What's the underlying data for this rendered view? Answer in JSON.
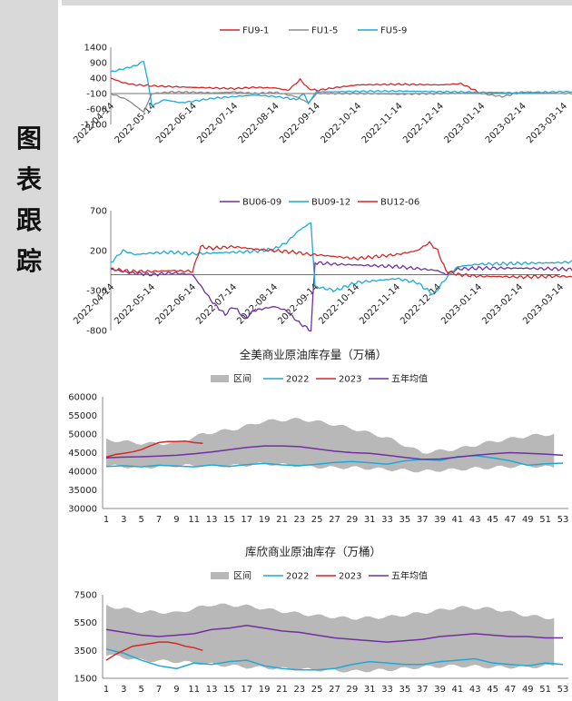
{
  "sidebar": {
    "title_chars": [
      "图",
      "表",
      "跟",
      "踪"
    ]
  },
  "chart_data": [
    {
      "type": "line",
      "title": "",
      "legend": [
        "FU9-1",
        "FU1-5",
        "FU5-9"
      ],
      "legend_position": "top",
      "colors": [
        "#d62728",
        "#8c8c8c",
        "#1fa9d6"
      ],
      "yticks": [
        "1400",
        "900",
        "400",
        "-100",
        "-600",
        "-1100"
      ],
      "ylim": [
        -1100,
        1400
      ],
      "xticks": [
        "2022-04-14",
        "2022-05-14",
        "2022-06-14",
        "2022-07-14",
        "2022-08-14",
        "2022-09-14",
        "2022-10-14",
        "2022-11-14",
        "2022-12-14",
        "2023-01-14",
        "2023-02-14",
        "2023-03-14"
      ],
      "series": [
        {
          "name": "FU9-1",
          "x": [
            0,
            0.3,
            0.6,
            1.0,
            1.5,
            2.0,
            2.5,
            3.0,
            3.5,
            4.0,
            4.3,
            4.6,
            4.8,
            5.0,
            5.5,
            6.0,
            7.0,
            8.0,
            8.5,
            8.7,
            9.0
          ],
          "values": [
            400,
            250,
            180,
            150,
            120,
            100,
            80,
            60,
            100,
            80,
            0,
            350,
            60,
            0,
            100,
            180,
            200,
            180,
            220,
            100,
            -100
          ]
        },
        {
          "name": "FU1-5",
          "x": [
            0,
            0.4,
            0.8,
            1.0,
            1.5,
            2.0,
            2.5,
            3.0,
            3.5,
            4.0,
            4.5,
            4.8,
            5.0,
            6.0,
            7.0,
            8.0,
            8.9,
            9.0,
            9.5,
            10.0,
            10.5,
            11.0,
            11.5,
            12.0,
            12.2
          ],
          "values": [
            -100,
            -300,
            -700,
            -100,
            -50,
            -60,
            -80,
            -50,
            -100,
            -60,
            -200,
            -400,
            -100,
            -100,
            -120,
            -100,
            -80,
            -100,
            -200,
            -50,
            -80,
            -100,
            -100,
            -150,
            -400
          ]
        },
        {
          "name": "FU5-9",
          "x": [
            0,
            0.3,
            0.6,
            0.8,
            0.9,
            1.0,
            1.3,
            1.7,
            2.0,
            2.5,
            3.0,
            3.5,
            4.0,
            4.3,
            4.5,
            4.7,
            4.8,
            4.9,
            5.0,
            6.0,
            7.0,
            8.0,
            9.0,
            10.0,
            11.0,
            11.5,
            12.0,
            12.2
          ],
          "values": [
            600,
            700,
            800,
            950,
            300,
            -500,
            -300,
            -400,
            -350,
            -250,
            -200,
            -150,
            -200,
            -250,
            -300,
            -100,
            -450,
            -200,
            -50,
            -30,
            -20,
            -40,
            -60,
            -80,
            -40,
            -60,
            30,
            120
          ]
        }
      ]
    },
    {
      "type": "line",
      "title": "",
      "legend": [
        "BU06-09",
        "BU09-12",
        "BU12-06"
      ],
      "legend_position": "top",
      "colors": [
        "#7030a0",
        "#1fa9d6",
        "#d62728"
      ],
      "yticks": [
        "700",
        "200",
        "-300",
        "-800"
      ],
      "ylim": [
        -800,
        700
      ],
      "xticks": [
        "2022-04-14",
        "2022-05-14",
        "2022-06-14",
        "2022-07-14",
        "2022-08-14",
        "2022-09-14",
        "2022-10-14",
        "2022-11-14",
        "2022-12-14",
        "2023-01-14",
        "2023-02-14",
        "2023-03-14"
      ],
      "series": [
        {
          "name": "BU06-09",
          "x": [
            0,
            0.5,
            1.0,
            1.5,
            2.0,
            2.5,
            2.8,
            3.0,
            3.3,
            3.5,
            4.0,
            4.3,
            4.6,
            4.9,
            5.0,
            5.5,
            6.0,
            7.0,
            8.0,
            8.2,
            8.5,
            9.0,
            10.0,
            11.0,
            12.0,
            12.2
          ],
          "values": [
            -30,
            -80,
            -100,
            -80,
            -100,
            -450,
            -600,
            -500,
            -650,
            -550,
            -500,
            -550,
            -700,
            -800,
            50,
            30,
            20,
            0,
            -50,
            -100,
            -30,
            -20,
            -20,
            -30,
            -50,
            -40
          ]
        },
        {
          "name": "BU09-12",
          "x": [
            0,
            0.3,
            0.6,
            1.0,
            1.5,
            2.0,
            2.5,
            3.0,
            3.5,
            4.0,
            4.3,
            4.6,
            4.9,
            5.0,
            5.5,
            6.0,
            7.0,
            7.5,
            7.9,
            8.2,
            8.5,
            9.0,
            10.0,
            11.0,
            12.0,
            12.2
          ],
          "values": [
            50,
            200,
            150,
            170,
            180,
            160,
            170,
            180,
            190,
            220,
            300,
            450,
            550,
            -250,
            -300,
            -200,
            -150,
            -200,
            -350,
            -150,
            0,
            30,
            40,
            50,
            90,
            100
          ]
        },
        {
          "name": "BU12-06",
          "x": [
            0,
            0.5,
            1.0,
            1.5,
            2.0,
            2.2,
            2.5,
            3.0,
            3.5,
            4.0,
            4.5,
            4.9,
            5.0,
            6.0,
            7.0,
            7.5,
            7.8,
            8.0,
            8.2,
            8.5,
            9.0,
            10.0,
            11.0,
            12.0,
            12.2
          ],
          "values": [
            -30,
            -60,
            -60,
            -50,
            -60,
            250,
            230,
            250,
            220,
            200,
            180,
            150,
            150,
            100,
            150,
            200,
            300,
            200,
            -50,
            -100,
            -120,
            -130,
            -120,
            -150,
            -140
          ]
        }
      ]
    },
    {
      "type": "area",
      "title": "全美商业原油库存量（万桶）",
      "legend": [
        "区间",
        "2022",
        "2023",
        "五年均值"
      ],
      "legend_position": "top",
      "colors": [
        "#b8b8b8",
        "#1fa9d6",
        "#d62728",
        "#7030a0"
      ],
      "yticks": [
        "60000",
        "55000",
        "50000",
        "45000",
        "40000",
        "35000",
        "30000"
      ],
      "ylim": [
        30000,
        60000
      ],
      "xticks": [
        "1",
        "3",
        "5",
        "7",
        "9",
        "11",
        "13",
        "15",
        "17",
        "19",
        "21",
        "23",
        "25",
        "27",
        "29",
        "31",
        "33",
        "35",
        "37",
        "39",
        "41",
        "43",
        "45",
        "47",
        "49",
        "51",
        "53"
      ],
      "range_weeks": [
        1,
        5,
        9,
        12,
        16,
        19,
        23,
        26,
        29,
        33,
        37,
        41,
        45,
        49,
        52
      ],
      "range_low": [
        41500,
        41000,
        41500,
        41500,
        41500,
        42000,
        41500,
        41000,
        41000,
        40500,
        40000,
        40500,
        41000,
        41500,
        41000
      ],
      "range_high": [
        48500,
        47500,
        47500,
        50000,
        51500,
        53500,
        54000,
        53000,
        51500,
        49000,
        45000,
        46000,
        48000,
        49500,
        50000
      ],
      "series": [
        {
          "name": "2022",
          "x": [
            1,
            3,
            5,
            7,
            9,
            11,
            13,
            15,
            17,
            19,
            21,
            23,
            25,
            27,
            29,
            31,
            33,
            35,
            37,
            39,
            41,
            43,
            45,
            47,
            49,
            51,
            53
          ],
          "values": [
            41300,
            41500,
            41200,
            41600,
            41400,
            41200,
            41700,
            41300,
            41800,
            42100,
            41700,
            41500,
            41900,
            42400,
            42600,
            42300,
            41900,
            42800,
            43200,
            42900,
            43900,
            44200,
            43600,
            42800,
            41600,
            42000,
            42200
          ]
        },
        {
          "name": "2023",
          "x": [
            1,
            2,
            3,
            4,
            5,
            6,
            7,
            8,
            9,
            10,
            11,
            12
          ],
          "values": [
            43800,
            44500,
            44800,
            45200,
            45800,
            46800,
            47700,
            48000,
            48000,
            48100,
            47700,
            47500
          ]
        },
        {
          "name": "五年均值",
          "x": [
            1,
            3,
            5,
            7,
            9,
            11,
            13,
            15,
            17,
            19,
            21,
            23,
            25,
            27,
            29,
            31,
            33,
            35,
            37,
            39,
            41,
            43,
            45,
            47,
            49,
            51,
            53
          ],
          "values": [
            43600,
            43800,
            43900,
            44100,
            44300,
            44700,
            45200,
            45800,
            46400,
            46800,
            46800,
            46600,
            46000,
            45400,
            45000,
            44800,
            44300,
            43700,
            43200,
            43300,
            43800,
            44300,
            44700,
            45000,
            44800,
            44600,
            44300
          ]
        }
      ]
    },
    {
      "type": "area",
      "title": "库欣商业原油库存（万桶）",
      "legend": [
        "区间",
        "2022",
        "2023",
        "五年均值"
      ],
      "legend_position": "top",
      "colors": [
        "#b8b8b8",
        "#1fa9d6",
        "#d62728",
        "#7030a0"
      ],
      "yticks": [
        "7500",
        "5500",
        "3500",
        "1500"
      ],
      "ylim": [
        1500,
        7500
      ],
      "xticks": [
        "1",
        "3",
        "5",
        "7",
        "9",
        "11",
        "13",
        "15",
        "17",
        "19",
        "21",
        "23",
        "25",
        "27",
        "29",
        "31",
        "33",
        "35",
        "37",
        "39",
        "41",
        "43",
        "45",
        "47",
        "49",
        "51",
        "53"
      ],
      "range_weeks": [
        1,
        5,
        9,
        13,
        17,
        21,
        25,
        29,
        33,
        37,
        41,
        45,
        49,
        52
      ],
      "range_low": [
        3200,
        2800,
        2700,
        2500,
        2300,
        2200,
        2100,
        2000,
        2100,
        2300,
        2400,
        2300,
        2300,
        2400
      ],
      "range_high": [
        6700,
        6300,
        6200,
        6800,
        6700,
        6300,
        6000,
        5800,
        5900,
        6200,
        6600,
        6500,
        6000,
        5800
      ],
      "series": [
        {
          "name": "2022",
          "x": [
            1,
            3,
            5,
            7,
            9,
            11,
            13,
            15,
            17,
            19,
            21,
            23,
            25,
            27,
            29,
            31,
            33,
            35,
            37,
            39,
            41,
            43,
            45,
            47,
            49,
            51,
            53
          ],
          "values": [
            3600,
            3300,
            2800,
            2400,
            2200,
            2600,
            2500,
            2700,
            2800,
            2400,
            2200,
            2100,
            2100,
            2200,
            2500,
            2700,
            2600,
            2500,
            2500,
            2700,
            2800,
            2900,
            2600,
            2500,
            2400,
            2600,
            2500
          ]
        },
        {
          "name": "2023",
          "x": [
            1,
            2,
            3,
            4,
            5,
            6,
            7,
            8,
            9,
            10,
            11,
            12
          ],
          "values": [
            2800,
            3200,
            3500,
            3800,
            3900,
            4000,
            4100,
            4100,
            4000,
            3800,
            3700,
            3500
          ]
        },
        {
          "name": "五年均值",
          "x": [
            1,
            3,
            5,
            7,
            9,
            11,
            13,
            15,
            17,
            19,
            21,
            23,
            25,
            27,
            29,
            31,
            33,
            35,
            37,
            39,
            41,
            43,
            45,
            47,
            49,
            51,
            53
          ],
          "values": [
            5000,
            4800,
            4600,
            4500,
            4600,
            4700,
            5000,
            5100,
            5300,
            5100,
            4900,
            4800,
            4600,
            4400,
            4300,
            4200,
            4100,
            4200,
            4300,
            4500,
            4600,
            4700,
            4600,
            4500,
            4500,
            4400,
            4400
          ]
        }
      ]
    }
  ]
}
